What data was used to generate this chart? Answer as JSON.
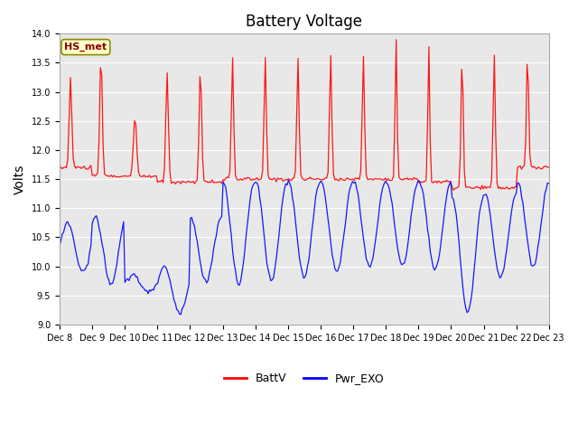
{
  "title": "Battery Voltage",
  "ylabel": "Volts",
  "ylim": [
    9.0,
    14.0
  ],
  "yticks": [
    9.0,
    9.5,
    10.0,
    10.5,
    11.0,
    11.5,
    12.0,
    12.5,
    13.0,
    13.5,
    14.0
  ],
  "x_tick_labels": [
    "Dec 8",
    "Dec 9",
    "Dec 10",
    "Dec 11",
    "Dec 12",
    "Dec 13",
    "Dec 14",
    "Dec 15",
    "Dec 16",
    "Dec 17",
    "Dec 18",
    "Dec 19",
    "Dec 20",
    "Dec 21",
    "Dec 22",
    "Dec 23"
  ],
  "legend_label1": "BattV",
  "legend_label2": "Pwr_EXO",
  "annotation": "HS_met",
  "line1_color": "#FF0000",
  "line2_color": "#0000FF",
  "bg_color": "#E8E8E8",
  "fig_bg_color": "#FFFFFF",
  "grid_color": "#FFFFFF",
  "title_fontsize": 12,
  "axis_fontsize": 10,
  "tick_fontsize": 7
}
